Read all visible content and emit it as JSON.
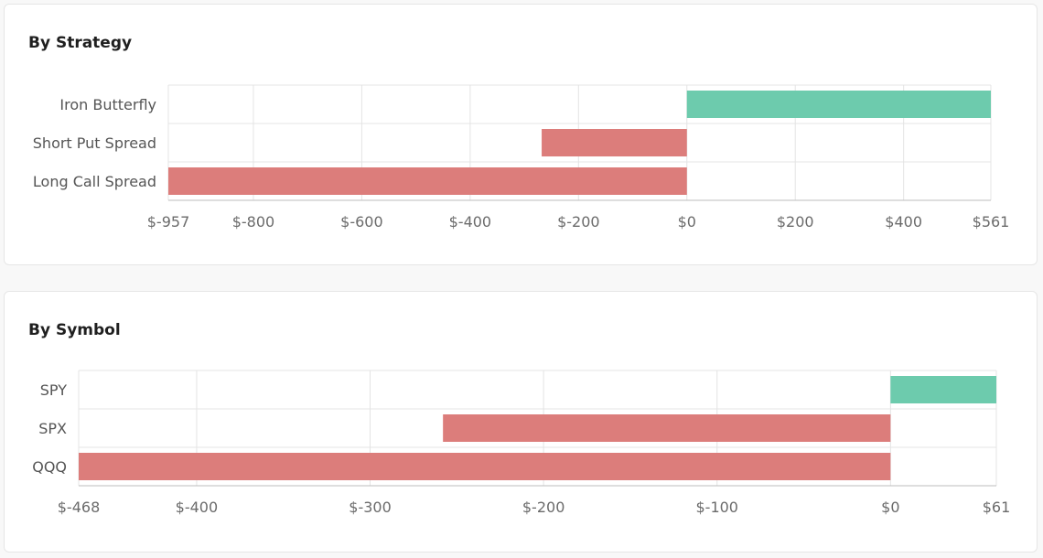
{
  "colors": {
    "positive": "#6dcbad",
    "negative": "#dc7d7b",
    "grid": "#e4e4e4",
    "axis": "#bdbdbd"
  },
  "chart_data": [
    {
      "type": "bar",
      "orientation": "horizontal",
      "title": "By Strategy",
      "categories": [
        "Iron Butterfly",
        "Short Put Spread",
        "Long Call Spread"
      ],
      "values": [
        561,
        -268,
        -957
      ],
      "xlim": [
        -957,
        561
      ],
      "xticks": [
        -957,
        -800,
        -600,
        -400,
        -200,
        0,
        200,
        400,
        561
      ],
      "xtick_labels": [
        "$-957",
        "$-800",
        "$-600",
        "$-400",
        "$-200",
        "$0",
        "$200",
        "$400",
        "$561"
      ],
      "grid": true,
      "legend": "none"
    },
    {
      "type": "bar",
      "orientation": "horizontal",
      "title": "By Symbol",
      "categories": [
        "SPY",
        "SPX",
        "QQQ"
      ],
      "values": [
        61,
        -258,
        -468
      ],
      "xlim": [
        -468,
        61
      ],
      "xticks": [
        -468,
        -400,
        -300,
        -200,
        -100,
        0,
        61
      ],
      "xtick_labels": [
        "$-468",
        "$-400",
        "$-300",
        "$-200",
        "$-100",
        "$0",
        "$61"
      ],
      "grid": true,
      "legend": "none"
    }
  ]
}
